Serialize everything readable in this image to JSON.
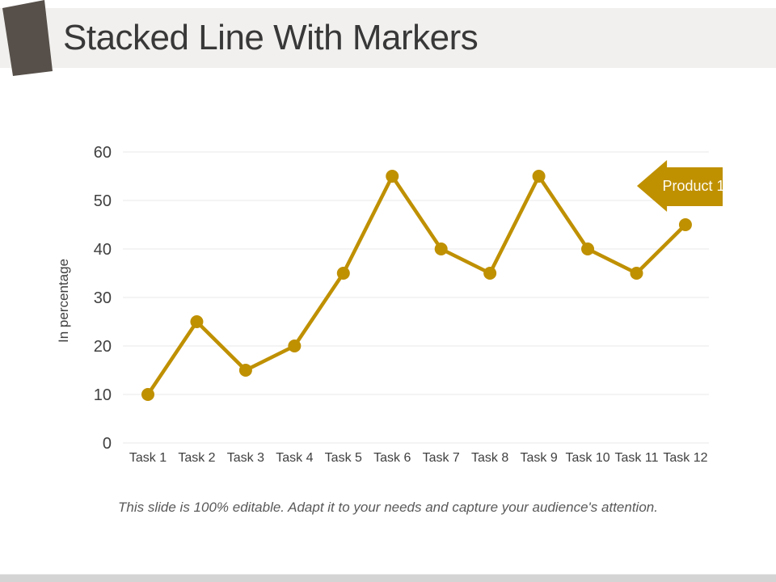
{
  "slide": {
    "title": "Stacked Line With Markers",
    "footnote": "This slide is 100% editable. Adapt it to your needs and capture your audience's attention.",
    "colors": {
      "accent": "#BF9000",
      "header_band": "#F1F0EE",
      "corner_shape": "#57504A",
      "title_text": "#383838",
      "axis_text": "#404040",
      "gridline": "#E9E9E9",
      "footnote_text": "#595959",
      "bottom_bar": "#D4D4D4",
      "callout_text": "#FDFBF2"
    }
  },
  "chart_data": {
    "type": "line",
    "title": "",
    "categories": [
      "Task 1",
      "Task 2",
      "Task 3",
      "Task 4",
      "Task 5",
      "Task 6",
      "Task 7",
      "Task 8",
      "Task 9",
      "Task 10",
      "Task 11",
      "Task 12"
    ],
    "series": [
      {
        "name": "Product 1",
        "values": [
          10,
          25,
          15,
          20,
          35,
          55,
          40,
          35,
          55,
          40,
          35,
          45
        ],
        "color": "#BF9000",
        "marker": "circle"
      }
    ],
    "xlabel": "",
    "ylabel": "In percentage",
    "ylim": [
      0,
      60
    ],
    "yticks": [
      0,
      10,
      20,
      30,
      40,
      50,
      60
    ],
    "grid": true,
    "legend": "none",
    "callout": {
      "label": "Product 1",
      "shape": "left-arrow-icon",
      "color": "#BF9000"
    }
  }
}
